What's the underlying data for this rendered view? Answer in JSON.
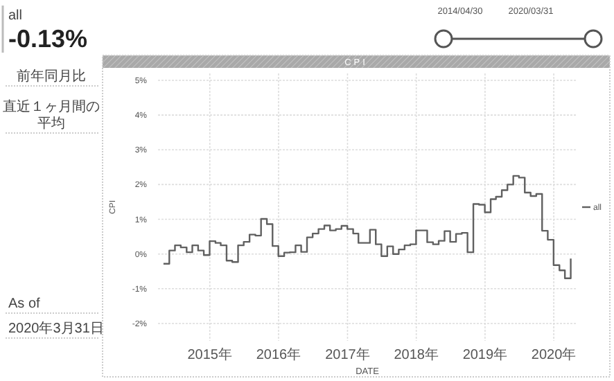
{
  "chart_data": [
    {
      "type": "other",
      "annotations": [
        "all",
        "-0.13%",
        "前年同月比",
        "直近１ヶ月間の平均",
        "As of",
        "2020年3月31日"
      ]
    },
    {
      "type": "other",
      "annotations": [
        "2014/04/30",
        "2020/03/31"
      ]
    },
    {
      "type": "step",
      "title": "CPI",
      "xlabel": "DATE",
      "ylabel": "CPI",
      "ylim": [
        -2.5,
        5.2
      ],
      "yticks": [
        {
          "value": -2,
          "label": "-2%"
        },
        {
          "value": -1,
          "label": "-1%"
        },
        {
          "value": 0,
          "label": "0%"
        },
        {
          "value": 1,
          "label": "1%"
        },
        {
          "value": 2,
          "label": "2%"
        },
        {
          "value": 3,
          "label": "3%"
        },
        {
          "value": 4,
          "label": "4%"
        },
        {
          "value": 5,
          "label": "5%"
        }
      ],
      "xlim": [
        "2014-04-01",
        "2020-05-01"
      ],
      "xticks": [
        {
          "value": "2015-01-01",
          "label": "2015年"
        },
        {
          "value": "2016-01-01",
          "label": "2016年"
        },
        {
          "value": "2017-01-01",
          "label": "2017年"
        },
        {
          "value": "2018-01-01",
          "label": "2018年"
        },
        {
          "value": "2019-01-01",
          "label": "2019年"
        },
        {
          "value": "2020-01-01",
          "label": "2020年"
        }
      ],
      "grid": true,
      "legend": "right",
      "x": [
        "2014-04-30",
        "2014-05-31",
        "2014-06-30",
        "2014-07-31",
        "2014-08-31",
        "2014-09-30",
        "2014-10-31",
        "2014-11-30",
        "2014-12-31",
        "2015-01-31",
        "2015-02-28",
        "2015-03-31",
        "2015-04-30",
        "2015-05-31",
        "2015-06-30",
        "2015-07-31",
        "2015-08-31",
        "2015-09-30",
        "2015-10-31",
        "2015-11-30",
        "2015-12-31",
        "2016-01-31",
        "2016-02-29",
        "2016-03-31",
        "2016-04-30",
        "2016-05-31",
        "2016-06-30",
        "2016-07-31",
        "2016-08-31",
        "2016-09-30",
        "2016-10-31",
        "2016-11-30",
        "2016-12-31",
        "2017-01-31",
        "2017-02-28",
        "2017-03-31",
        "2017-04-30",
        "2017-05-31",
        "2017-06-30",
        "2017-07-31",
        "2017-08-31",
        "2017-09-30",
        "2017-10-31",
        "2017-11-30",
        "2017-12-31",
        "2018-01-31",
        "2018-02-28",
        "2018-03-31",
        "2018-04-30",
        "2018-05-31",
        "2018-06-30",
        "2018-07-31",
        "2018-08-31",
        "2018-09-30",
        "2018-10-31",
        "2018-11-30",
        "2018-12-31",
        "2019-01-31",
        "2019-02-28",
        "2019-03-31",
        "2019-04-30",
        "2019-05-31",
        "2019-06-30",
        "2019-07-31",
        "2019-08-31",
        "2019-09-30",
        "2019-10-31",
        "2019-11-30",
        "2019-12-31",
        "2020-01-31",
        "2020-02-29",
        "2020-03-31"
      ],
      "series": [
        {
          "name": "all",
          "color": "#606060",
          "values": [
            -0.28,
            0.1,
            0.25,
            0.19,
            0.05,
            0.25,
            0.1,
            -0.03,
            0.37,
            0.32,
            0.25,
            -0.19,
            -0.23,
            0.25,
            0.35,
            0.56,
            0.53,
            1.01,
            0.86,
            0.23,
            -0.06,
            0.04,
            0.05,
            0.25,
            0.06,
            0.48,
            0.59,
            0.72,
            0.82,
            0.68,
            0.72,
            0.81,
            0.72,
            0.59,
            0.32,
            0.32,
            0.7,
            0.28,
            -0.06,
            0.22,
            0.0,
            0.13,
            0.25,
            0.28,
            0.68,
            0.68,
            0.34,
            0.28,
            0.38,
            0.66,
            0.35,
            0.58,
            0.61,
            0.05,
            1.44,
            1.42,
            1.2,
            1.58,
            1.65,
            1.84,
            2.0,
            2.25,
            2.2,
            1.77,
            1.67,
            1.73,
            0.67,
            0.41,
            -0.32,
            -0.47,
            -0.7,
            -0.13
          ]
        }
      ]
    }
  ]
}
